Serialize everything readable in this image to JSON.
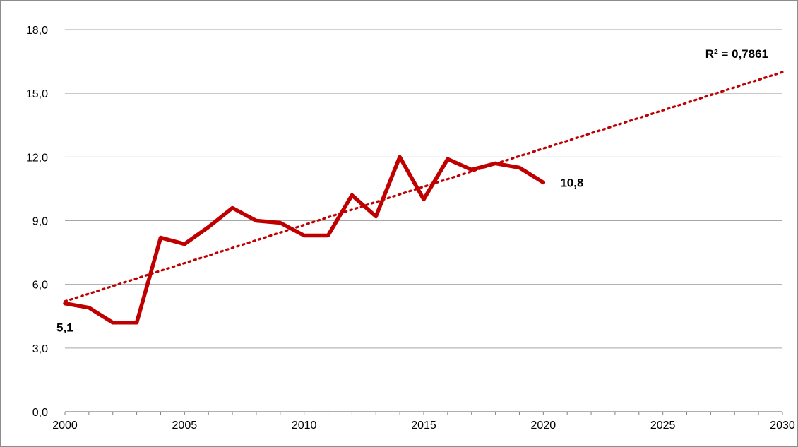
{
  "chart_data": {
    "type": "line",
    "title": "",
    "xlabel": "",
    "ylabel": "",
    "xlim": [
      2000,
      2030
    ],
    "ylim": [
      0,
      18
    ],
    "y_ticks": [
      "0,0",
      "3,0",
      "6,0",
      "9,0",
      "12,0",
      "15,0",
      "18,0"
    ],
    "x_ticks": [
      "2000",
      "2005",
      "2010",
      "2015",
      "2020",
      "2025",
      "2030"
    ],
    "grid": "horizontal",
    "legend": "none",
    "series": [
      {
        "x": [
          2000,
          2001,
          2002,
          2003,
          2004,
          2005,
          2006,
          2007,
          2008,
          2009,
          2010,
          2011,
          2012,
          2013,
          2014,
          2015,
          2016,
          2017,
          2018,
          2019,
          2020
        ],
        "values": [
          5.1,
          4.9,
          4.2,
          4.2,
          8.2,
          7.9,
          8.7,
          9.6,
          9.0,
          8.9,
          8.3,
          8.3,
          10.2,
          9.2,
          12.0,
          10.0,
          11.9,
          11.4,
          11.7,
          11.5,
          10.8
        ],
        "color": "#c00000"
      }
    ],
    "trendline": {
      "type": "linear",
      "x": [
        2000,
        2030
      ],
      "values": [
        5.2,
        16.0
      ],
      "r_squared_label": "R² = 0,7861",
      "color": "#c00000"
    },
    "data_labels": [
      {
        "x": 2000,
        "y": 5.1,
        "text": "5,1"
      },
      {
        "x": 2020,
        "y": 10.8,
        "text": "10,8"
      }
    ]
  }
}
